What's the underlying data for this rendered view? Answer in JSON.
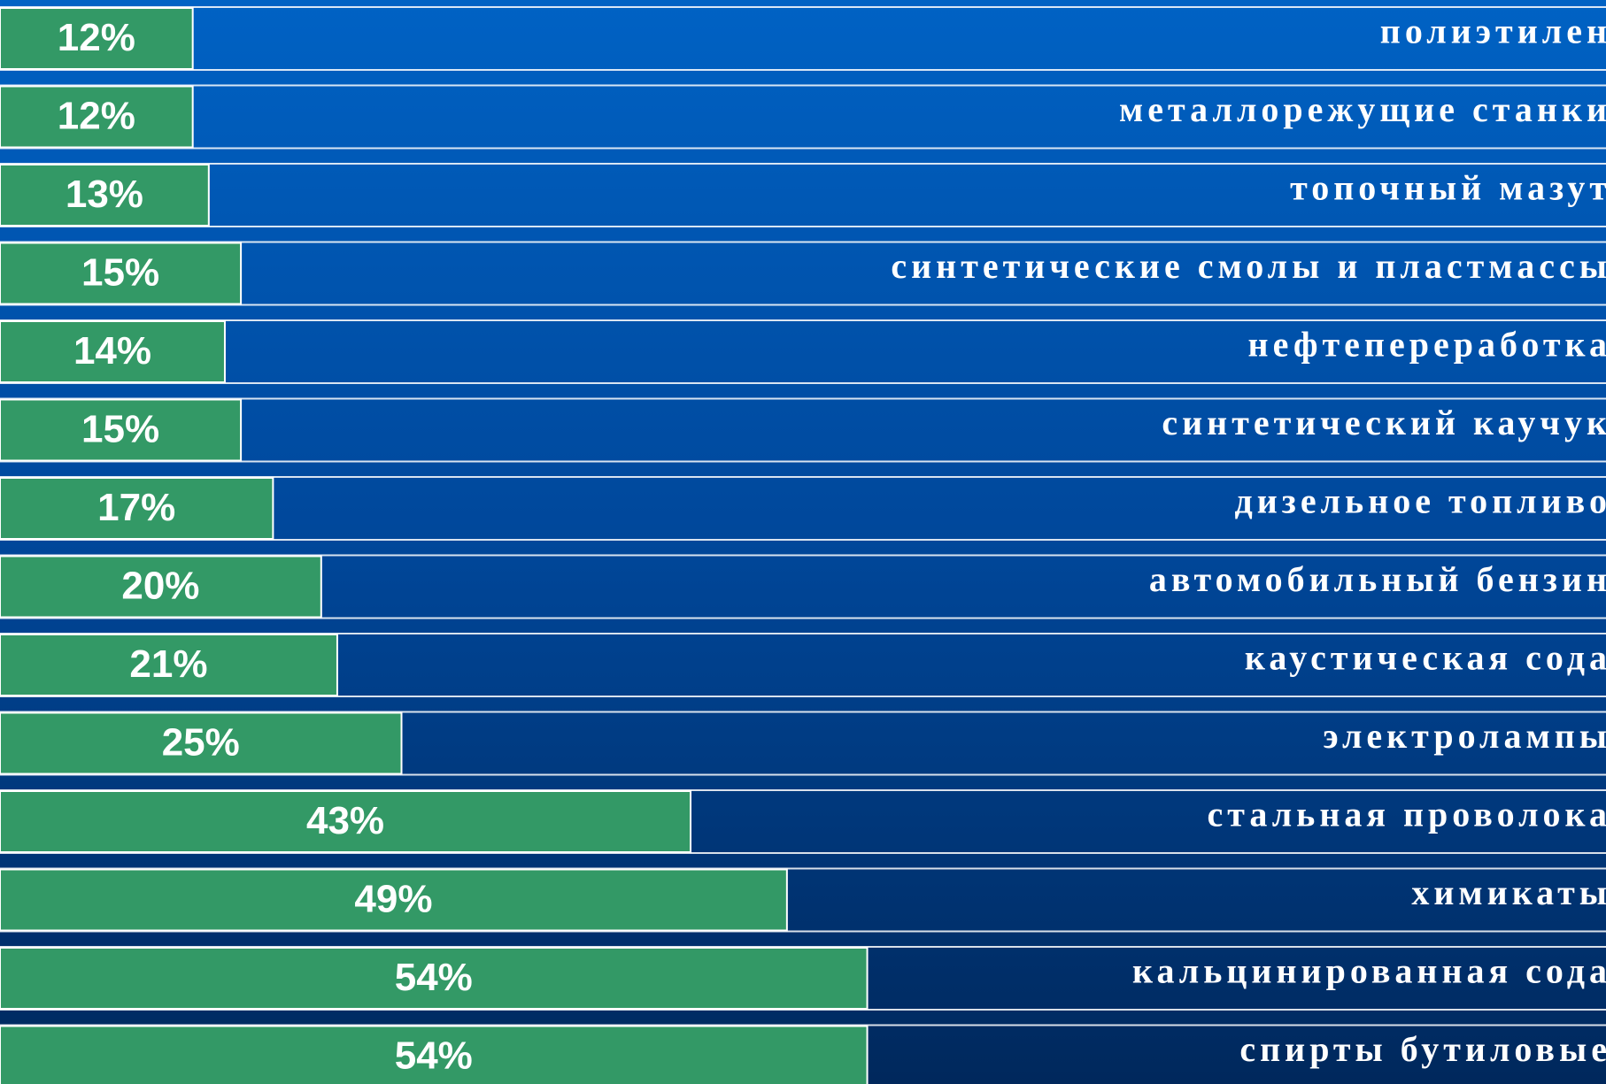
{
  "chart_data": {
    "type": "barh",
    "categories": [
      "полиэтилен",
      "металлорежущие станки",
      "топочный мазут",
      "синтетические смолы и пластмассы",
      "нефтепереработка",
      "синтетический каучук",
      "дизельное топливо",
      "автомобильный бензин",
      "каустическая сода",
      "электролампы",
      "стальная проволока",
      "химикаты",
      "кальцинированная сода",
      "спирты бутиловые"
    ],
    "values": [
      12,
      12,
      13,
      15,
      14,
      15,
      17,
      20,
      21,
      25,
      43,
      49,
      54,
      54
    ],
    "value_labels": [
      "12%",
      "12%",
      "13%",
      "15%",
      "14%",
      "15%",
      "17%",
      "20%",
      "21%",
      "25%",
      "43%",
      "49%",
      "54%",
      "54%"
    ],
    "color": "#339966",
    "xlim": [
      0,
      100
    ]
  }
}
